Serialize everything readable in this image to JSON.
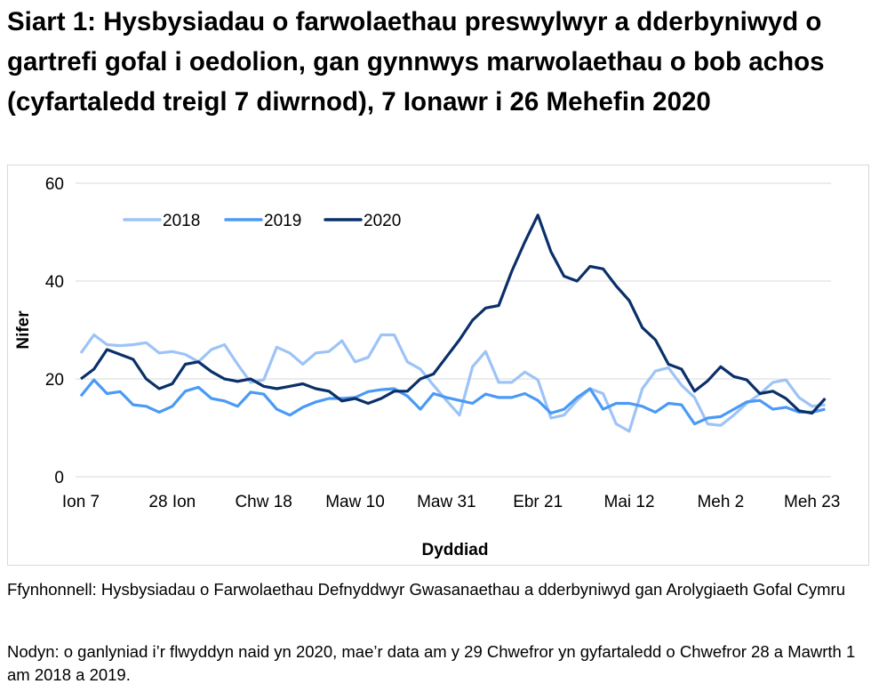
{
  "title": "Siart 1: Hysbysiadau o farwolaethau preswylwyr a dderbyniwyd o gartrefi gofal i oedolion, gan gynnwys marwolaethau o bob achos (cyfartaledd treigl 7 diwrnod), 7 Ionawr i 26 Mehefin 2020",
  "source": "Ffynhonnell: Hysbysiadau o Farwolaethau Defnyddwyr Gwasanaethau a dderbyniwyd gan Arolygiaeth Gofal Cymru",
  "note": "Nodyn: o ganlyniad i’r flwyddyn naid yn 2020, mae’r data am y 29 Chwefror yn gyfartaledd o Chwefror 28 a Mawrth 1 am 2018 a 2019.",
  "chart_data": {
    "type": "line",
    "xlabel": "Dyddiad",
    "ylabel": "Nifer",
    "ylim": [
      0,
      60
    ],
    "yticks": [
      0,
      20,
      40,
      60
    ],
    "grid": true,
    "legend_position": "top-left",
    "xticks": [
      {
        "date": "2020-01-07",
        "label": "Ion 7"
      },
      {
        "date": "2020-01-28",
        "label": "28 Ion"
      },
      {
        "date": "2020-02-18",
        "label": "Chw 18"
      },
      {
        "date": "2020-03-10",
        "label": "Maw 10"
      },
      {
        "date": "2020-03-31",
        "label": "Maw 31"
      },
      {
        "date": "2020-04-21",
        "label": "Ebr 21"
      },
      {
        "date": "2020-05-12",
        "label": "Mai 12"
      },
      {
        "date": "2020-06-02",
        "label": "Meh 2"
      },
      {
        "date": "2020-06-23",
        "label": "Meh 23"
      }
    ],
    "x": [
      "2020-01-07",
      "2020-01-10",
      "2020-01-13",
      "2020-01-16",
      "2020-01-19",
      "2020-01-22",
      "2020-01-25",
      "2020-01-28",
      "2020-01-31",
      "2020-02-03",
      "2020-02-06",
      "2020-02-09",
      "2020-02-12",
      "2020-02-15",
      "2020-02-18",
      "2020-02-21",
      "2020-02-24",
      "2020-02-27",
      "2020-03-01",
      "2020-03-04",
      "2020-03-07",
      "2020-03-10",
      "2020-03-13",
      "2020-03-16",
      "2020-03-19",
      "2020-03-22",
      "2020-03-25",
      "2020-03-28",
      "2020-03-31",
      "2020-04-03",
      "2020-04-06",
      "2020-04-09",
      "2020-04-12",
      "2020-04-15",
      "2020-04-18",
      "2020-04-21",
      "2020-04-24",
      "2020-04-27",
      "2020-04-30",
      "2020-05-03",
      "2020-05-06",
      "2020-05-09",
      "2020-05-12",
      "2020-05-15",
      "2020-05-18",
      "2020-05-21",
      "2020-05-24",
      "2020-05-27",
      "2020-05-30",
      "2020-06-02",
      "2020-06-05",
      "2020-06-08",
      "2020-06-11",
      "2020-06-14",
      "2020-06-17",
      "2020-06-20",
      "2020-06-23",
      "2020-06-26"
    ],
    "series": [
      {
        "name": "2018",
        "color": "#9dc3f7",
        "values": [
          25.3,
          29,
          27,
          26.8,
          27,
          27.4,
          25.3,
          25.6,
          25,
          23.5,
          26,
          27,
          23,
          19.3,
          19.8,
          26.5,
          25.3,
          23,
          25.3,
          25.6,
          27.8,
          23.5,
          24.4,
          29,
          29,
          23.5,
          22,
          18.7,
          15.6,
          12.6,
          22.5,
          25.6,
          19.3,
          19.3,
          21.4,
          19.8,
          12,
          12.6,
          15.6,
          18,
          17,
          10.8,
          9.3,
          18,
          21.6,
          22.3,
          18.7,
          16.2,
          10.8,
          10.5,
          12.6,
          15,
          16.9,
          19.3,
          19.8,
          16.2,
          14.4,
          14.7
        ]
      },
      {
        "name": "2019",
        "color": "#4a9af5",
        "values": [
          16.5,
          19.8,
          17,
          17.4,
          14.7,
          14.4,
          13.2,
          14.4,
          17.5,
          18.3,
          16,
          15.5,
          14.4,
          17.3,
          16.9,
          13.8,
          12.6,
          14.2,
          15.3,
          16,
          16,
          16.2,
          17.4,
          17.8,
          18,
          16.5,
          13.8,
          17,
          16.2,
          15.6,
          15,
          16.9,
          16.2,
          16.2,
          17,
          15.6,
          13,
          13.8,
          16.2,
          18,
          13.8,
          15,
          15,
          14.4,
          13.2,
          15,
          14.7,
          10.8,
          12,
          12.3,
          13.8,
          15.3,
          15.6,
          13.8,
          14.2,
          13.2,
          13.2,
          13.8
        ]
      },
      {
        "name": "2020",
        "color": "#0b3069",
        "values": [
          20,
          22,
          26,
          25,
          24,
          20,
          18,
          19,
          23,
          23.5,
          21.5,
          20,
          19.5,
          20,
          18.5,
          18,
          18.5,
          19,
          18,
          17.5,
          15.5,
          16,
          15,
          16,
          17.5,
          17.5,
          20,
          21,
          24.5,
          28,
          32,
          34.5,
          35,
          42,
          48,
          53.5,
          46,
          41,
          40,
          43,
          42.5,
          39,
          36,
          30.5,
          28,
          23,
          22,
          17.5,
          19.6,
          22.5,
          20.5,
          19.8,
          17,
          17.5,
          16,
          13.5,
          13,
          16
        ]
      }
    ]
  }
}
